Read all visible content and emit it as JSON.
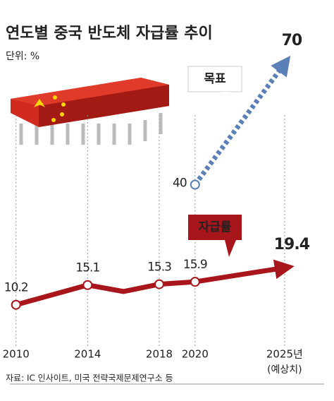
{
  "chart_data": {
    "type": "line",
    "title": "연도별 중국 반도체 자급률 추이",
    "subtitle": "단위: %",
    "xlim": [
      2009.5,
      2026.5
    ],
    "xticks": [
      2010,
      2014,
      2018,
      2020,
      {
        "value": 2025,
        "label": "2025년"
      }
    ],
    "x_note": "(예상치)",
    "ylim": [
      0,
      80
    ],
    "series": [
      {
        "name": "자급률",
        "color": "#a8161b",
        "x": [
          2010,
          2014,
          2016,
          2018,
          2020,
          2025
        ],
        "values": [
          10.2,
          15.1,
          13.5,
          15.3,
          15.9,
          19.4
        ],
        "value_labels": [
          "10.2",
          "15.1",
          null,
          "15.3",
          "15.9",
          "19.4"
        ]
      },
      {
        "name": "목표",
        "color": "#5b80b8",
        "dashed": true,
        "x": [
          2020,
          2025
        ],
        "values": [
          40,
          70
        ]
      }
    ],
    "source": "자료: IC 인사이트, 미국 전략국제문제연구소 등"
  }
}
